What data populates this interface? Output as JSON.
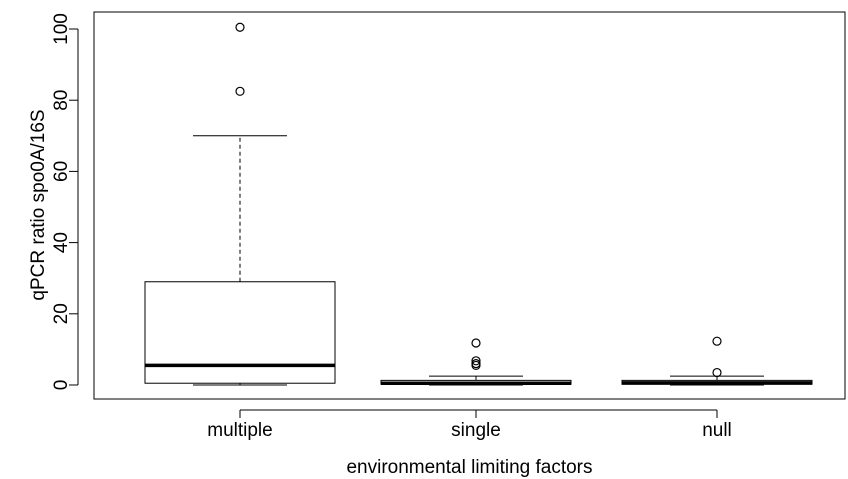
{
  "chart_data": {
    "type": "boxplot",
    "title": "",
    "xlabel": "environmental limiting factors",
    "ylabel": "qPCR ratio spo0A/16S",
    "ylim": [
      -4,
      105
    ],
    "yticks": [
      0,
      20,
      40,
      60,
      80,
      100
    ],
    "categories": [
      "multiple",
      "single",
      "null"
    ],
    "boxes": [
      {
        "category": "multiple",
        "whisker_low": 0,
        "q1": 0.5,
        "median": 5.5,
        "q3": 29,
        "whisker_high": 70,
        "outliers": [
          82.5,
          100.5
        ]
      },
      {
        "category": "single",
        "whisker_low": 0,
        "q1": 0.2,
        "median": 0.5,
        "q3": 1.3,
        "whisker_high": 2.5,
        "outliers": [
          5.5,
          6.0,
          6.8,
          11.8
        ]
      },
      {
        "category": "null",
        "whisker_low": 0,
        "q1": 0.2,
        "median": 0.6,
        "q3": 1.3,
        "whisker_high": 2.5,
        "outliers": [
          3.5,
          12.3
        ]
      }
    ],
    "grid": false,
    "legend": "none"
  }
}
